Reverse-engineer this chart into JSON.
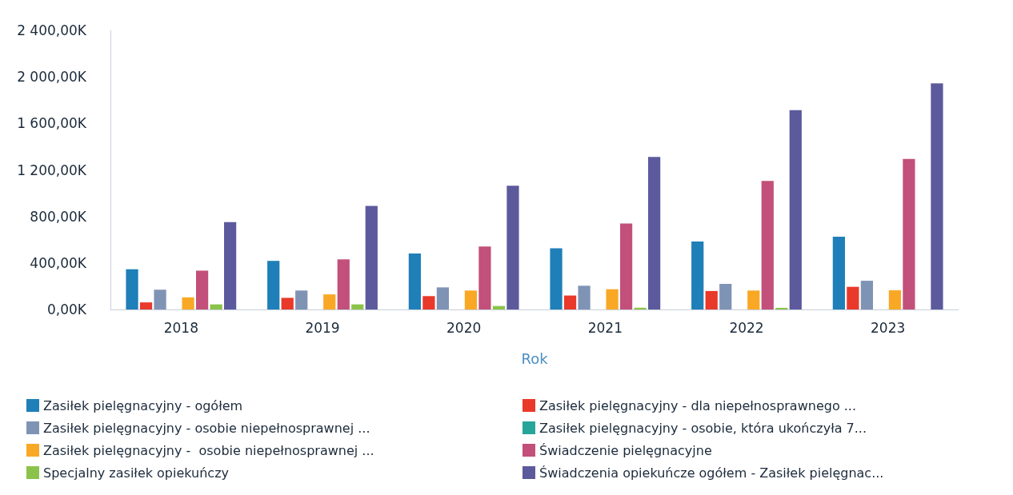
{
  "chart_data": {
    "type": "bar",
    "xlabel": "Rok",
    "categories": [
      "2018",
      "2019",
      "2020",
      "2021",
      "2022",
      "2023"
    ],
    "series": [
      {
        "name": "Zasiłek pielęgnacyjny - ogółem",
        "color": "#1f7fb8",
        "values": [
          346,
          418,
          481,
          526,
          585,
          625
        ]
      },
      {
        "name": "Zasiłek pielęgnacyjny - dla niepełnosprawnego ...",
        "color": "#e8392a",
        "values": [
          61,
          100,
          115,
          120,
          159,
          195
        ]
      },
      {
        "name": "Zasiłek pielęgnacyjny - osobie niepełnosprawnej ...",
        "color": "#7f93b5",
        "values": [
          170,
          163,
          190,
          204,
          220,
          247
        ]
      },
      {
        "name": "Zasiłek pielęgnacyjny - osobie, która ukończyła 7...",
        "color": "#26a69a",
        "values": [
          0,
          0,
          0,
          0,
          0,
          0
        ]
      },
      {
        "name": "Zasiłek pielęgnacyjny -  osobie niepełnosprawnej ...",
        "color": "#f9a825",
        "values": [
          104,
          130,
          163,
          174,
          163,
          165
        ]
      },
      {
        "name": "Świadczenie pielęgnacyjne",
        "color": "#c2507a",
        "values": [
          334,
          431,
          542,
          740,
          1106,
          1294
        ]
      },
      {
        "name": "Specjalny zasiłek opiekuńczy",
        "color": "#8bc34a",
        "values": [
          44,
          44,
          30,
          15,
          14,
          0
        ]
      },
      {
        "name": "Świadczenia opiekuńcze ogółem - Zasiłek pielęgnac...",
        "color": "#5c5a9c",
        "values": [
          752,
          891,
          1064,
          1311,
          1714,
          1945
        ]
      }
    ],
    "ylim": [
      0,
      2400
    ],
    "yticks": [
      {
        "value": 0,
        "label": "0,00K"
      },
      {
        "value": 400,
        "label": "400,00K"
      },
      {
        "value": 800,
        "label": "800,00K"
      },
      {
        "value": 1200,
        "label": "1 200,00K"
      },
      {
        "value": 1600,
        "label": "1 600,00K"
      },
      {
        "value": 2000,
        "label": "2 000,00K"
      },
      {
        "value": 2400,
        "label": "2 400,00K"
      }
    ],
    "grid": false,
    "legend": "bottom"
  }
}
